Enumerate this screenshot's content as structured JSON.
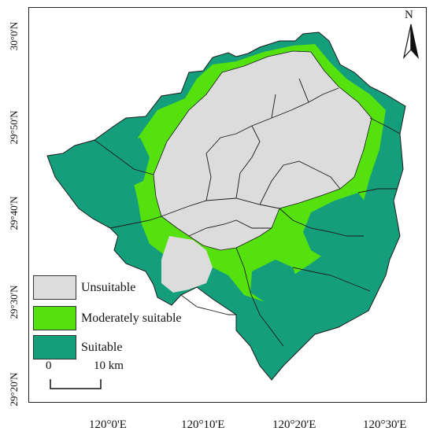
{
  "map": {
    "lat_labels": [
      "30°0'N",
      "29°50'N",
      "29°40'N",
      "29°30'N",
      "29°20'N"
    ],
    "lon_labels": [
      "120°0'E",
      "120°10'E",
      "120°20'E",
      "120°30'E"
    ],
    "north_label": "N",
    "scale_bar": {
      "start": "0",
      "end": "10 km"
    },
    "legend": [
      {
        "label": "Unsuitable",
        "color": "#dcdcdc"
      },
      {
        "label": "Moderately suitable",
        "color": "#55e10e"
      },
      {
        "label": "Suitable",
        "color": "#149e7c"
      }
    ]
  }
}
